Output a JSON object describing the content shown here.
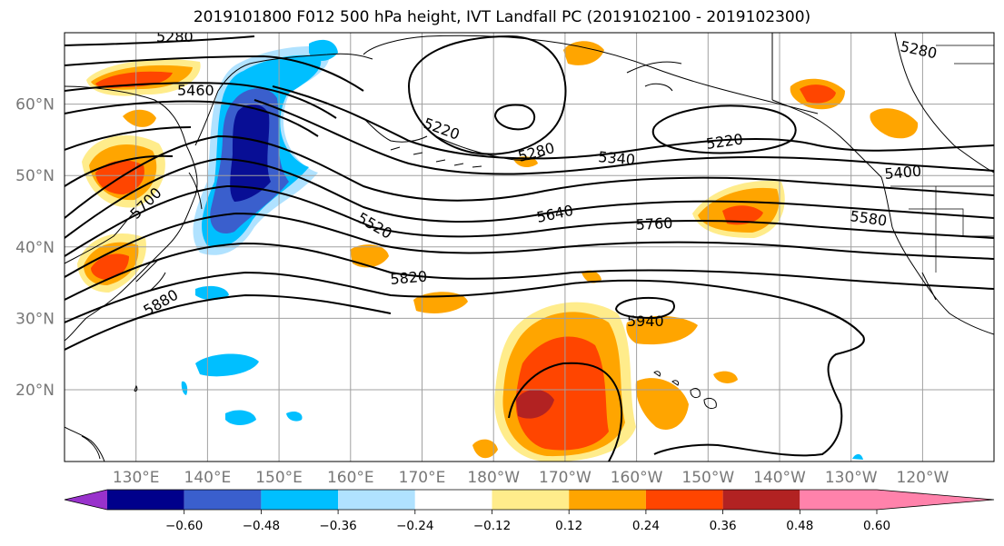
{
  "title": "2019101800 F012 500 hPa height, IVT Landfall PC (2019102100 - 2019102300)",
  "latitude_labels": [
    "60°N",
    "50°N",
    "40°N",
    "30°N",
    "20°N"
  ],
  "longitude_labels": [
    "130°E",
    "140°E",
    "150°E",
    "160°E",
    "170°E",
    "180°W",
    "170°W",
    "160°W",
    "150°W",
    "140°W",
    "130°W",
    "120°W"
  ],
  "height_contour_labels": [
    "5280",
    "5460",
    "5220",
    "5280",
    "5340",
    "5220",
    "5280",
    "5400",
    "5520",
    "5640",
    "5760",
    "5580",
    "5700",
    "5820",
    "5880",
    "5940"
  ],
  "colorbar": {
    "tick_labels": [
      "−0.60",
      "−0.48",
      "−0.36",
      "−0.24",
      "−0.12",
      "0.12",
      "0.24",
      "0.36",
      "0.48",
      "0.60"
    ],
    "colors": [
      "#9932cc",
      "#00008b",
      "#3a5fcd",
      "#00bfff",
      "#b0e2ff",
      "#ffffff",
      "#ffec8b",
      "#ffa500",
      "#ff4500",
      "#b22222",
      "#ff82ab"
    ]
  },
  "colors": {
    "grid": "#a0a0a0",
    "contour": "#000000",
    "coastline": "#000000",
    "tick_label": "#777777"
  }
}
